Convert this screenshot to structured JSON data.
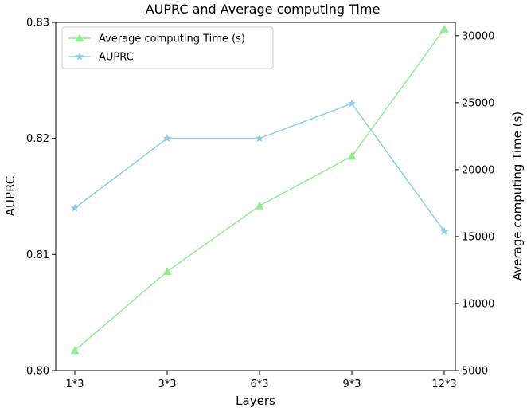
{
  "chart_data": {
    "type": "line",
    "title": "AUPRC and Average computing Time",
    "xlabel": "Layers",
    "ylabel_left": "AUPRC",
    "ylabel_right": "Average computing Time (s)",
    "categories": [
      "1*3",
      "3*3",
      "6*3",
      "9*3",
      "12*3"
    ],
    "ylim_left": [
      0.8,
      0.83
    ],
    "yticks_left": [
      "0.80",
      "0.81",
      "0.82",
      "0.83"
    ],
    "ylim_right": [
      5000,
      31000
    ],
    "yticks_right": [
      "5000",
      "10000",
      "15000",
      "20000",
      "25000",
      "30000"
    ],
    "grid": false,
    "legend_position": "top-left",
    "series": [
      {
        "name": "Average computing Time (s)",
        "axis": "right",
        "color": "#90EE90",
        "marker": "triangle",
        "values": [
          6500,
          12400,
          17300,
          21000,
          30500
        ]
      },
      {
        "name": "AUPRC",
        "axis": "left",
        "color": "#87CEEB",
        "marker": "star",
        "values": [
          0.814,
          0.82,
          0.82,
          0.823,
          0.812
        ]
      }
    ]
  }
}
